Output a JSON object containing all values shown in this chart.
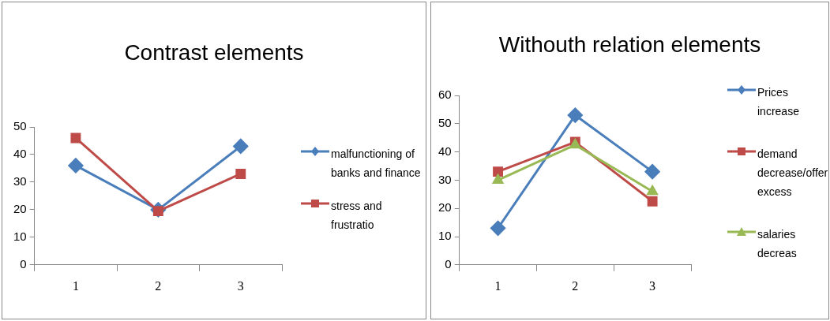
{
  "chart_data": [
    {
      "type": "line",
      "title": "Contrast elements",
      "categories": [
        "1",
        "2",
        "3"
      ],
      "series": [
        {
          "name": "malfunctioning of banks and finance",
          "color": "#4a7ebb",
          "marker": "diamond",
          "values": [
            36,
            20,
            43
          ]
        },
        {
          "name": "stress and frustratio",
          "color": "#be4b48",
          "marker": "square",
          "values": [
            46,
            19.5,
            33
          ]
        }
      ],
      "ylim": [
        0,
        50
      ],
      "yticks": [
        0,
        10,
        20,
        30,
        40,
        50
      ],
      "grid": false,
      "legend": "right"
    },
    {
      "type": "line",
      "title": "Withouth relation elements",
      "categories": [
        "1",
        "2",
        "3"
      ],
      "series": [
        {
          "name": "Prices increase",
          "color": "#4a7ebb",
          "marker": "diamond",
          "values": [
            13,
            53,
            33
          ]
        },
        {
          "name": "demand decrease/offer excess",
          "color": "#be4b48",
          "marker": "square",
          "values": [
            33,
            43.5,
            22.5
          ]
        },
        {
          "name": "salaries decreas",
          "color": "#98b954",
          "marker": "triangle",
          "values": [
            30,
            42.5,
            26
          ]
        }
      ],
      "ylim": [
        0,
        60
      ],
      "yticks": [
        0,
        10,
        20,
        30,
        40,
        50,
        60
      ],
      "grid": false,
      "legend": "right"
    }
  ]
}
